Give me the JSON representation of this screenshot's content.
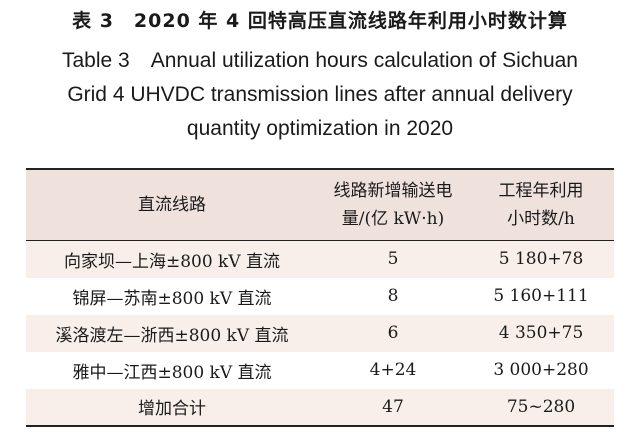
{
  "caption": {
    "cn": "表 3　2020 年 4 回特高压直流线路年利用小时数计算",
    "en_line1": "Table 3　Annual utilization hours calculation of Sichuan",
    "en_line2": "Grid 4 UHVDC transmission lines after annual delivery",
    "en_line3": "quantity optimization in 2020"
  },
  "table": {
    "headers": {
      "col1": "直流线路",
      "col2_line1": "线路新增输送电",
      "col2_line2": "量/(亿 kW·h)",
      "col3_line1": "工程年利用",
      "col3_line2": "小时数/h"
    },
    "rows": [
      {
        "line": "向家坝—上海±800 kV 直流",
        "added": "5",
        "hours": "5 180+78"
      },
      {
        "line": "锦屏—苏南±800 kV 直流",
        "added": "8",
        "hours": "5 160+111"
      },
      {
        "line": "溪洛渡左—浙西±800 kV 直流",
        "added": "6",
        "hours": "4 350+75"
      },
      {
        "line": "雅中—江西±800 kV 直流",
        "added": "4+24",
        "hours": "3 000+280"
      },
      {
        "line": "增加合计",
        "added": "47",
        "hours": "75~280"
      }
    ]
  }
}
